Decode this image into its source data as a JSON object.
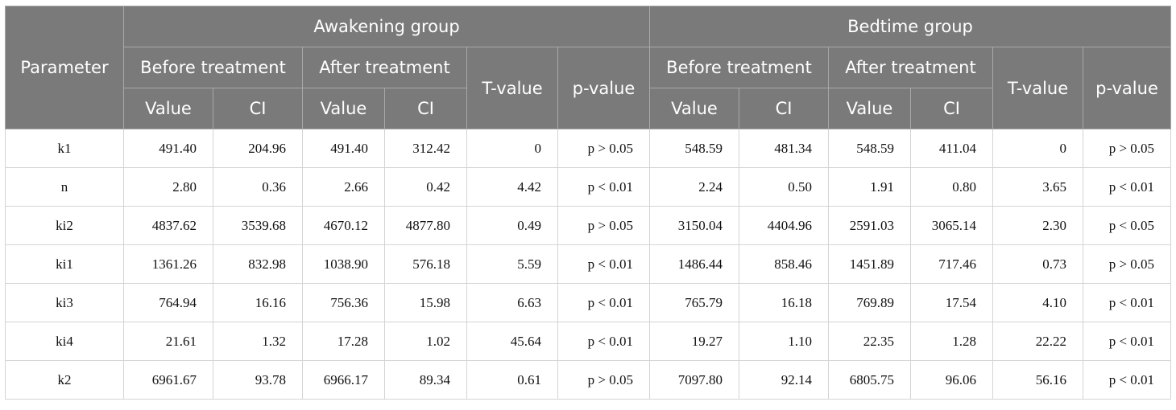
{
  "headers": {
    "parameter": "Parameter",
    "groups": [
      "Awakening group",
      "Bedtime group"
    ],
    "before": "Before treatment",
    "after": "After treatment",
    "tvalue": "T-value",
    "pvalue": "p-value",
    "value": "Value",
    "ci": "CI"
  },
  "rows": [
    [
      "k1",
      "491.40",
      "204.96",
      "491.40",
      "312.42",
      "0",
      "p > 0.05",
      "548.59",
      "481.34",
      "548.59",
      "411.04",
      "0",
      "p > 0.05"
    ],
    [
      "n",
      "2.80",
      "0.36",
      "2.66",
      "0.42",
      "4.42",
      "p < 0.01",
      "2.24",
      "0.50",
      "1.91",
      "0.80",
      "3.65",
      "p < 0.01"
    ],
    [
      "ki2",
      "4837.62",
      "3539.68",
      "4670.12",
      "4877.80",
      "0.49",
      "p > 0.05",
      "3150.04",
      "4404.96",
      "2591.03",
      "3065.14",
      "2.30",
      "p < 0.05"
    ],
    [
      "ki1",
      "1361.26",
      "832.98",
      "1038.90",
      "576.18",
      "5.59",
      "p < 0.01",
      "1486.44",
      "858.46",
      "1451.89",
      "717.46",
      "0.73",
      "p > 0.05"
    ],
    [
      "ki3",
      "764.94",
      "16.16",
      "756.36",
      "15.98",
      "6.63",
      "p < 0.01",
      "765.79",
      "16.18",
      "769.89",
      "17.54",
      "4.10",
      "p < 0.01"
    ],
    [
      "ki4",
      "21.61",
      "1.32",
      "17.28",
      "1.02",
      "45.64",
      "p < 0.01",
      "19.27",
      "1.10",
      "22.35",
      "1.28",
      "22.22",
      "p < 0.01"
    ],
    [
      "k2",
      "6961.67",
      "93.78",
      "6966.17",
      "89.34",
      "0.61",
      "p > 0.05",
      "7097.80",
      "92.14",
      "6805.75",
      "96.06",
      "56.16",
      "p < 0.01"
    ]
  ]
}
